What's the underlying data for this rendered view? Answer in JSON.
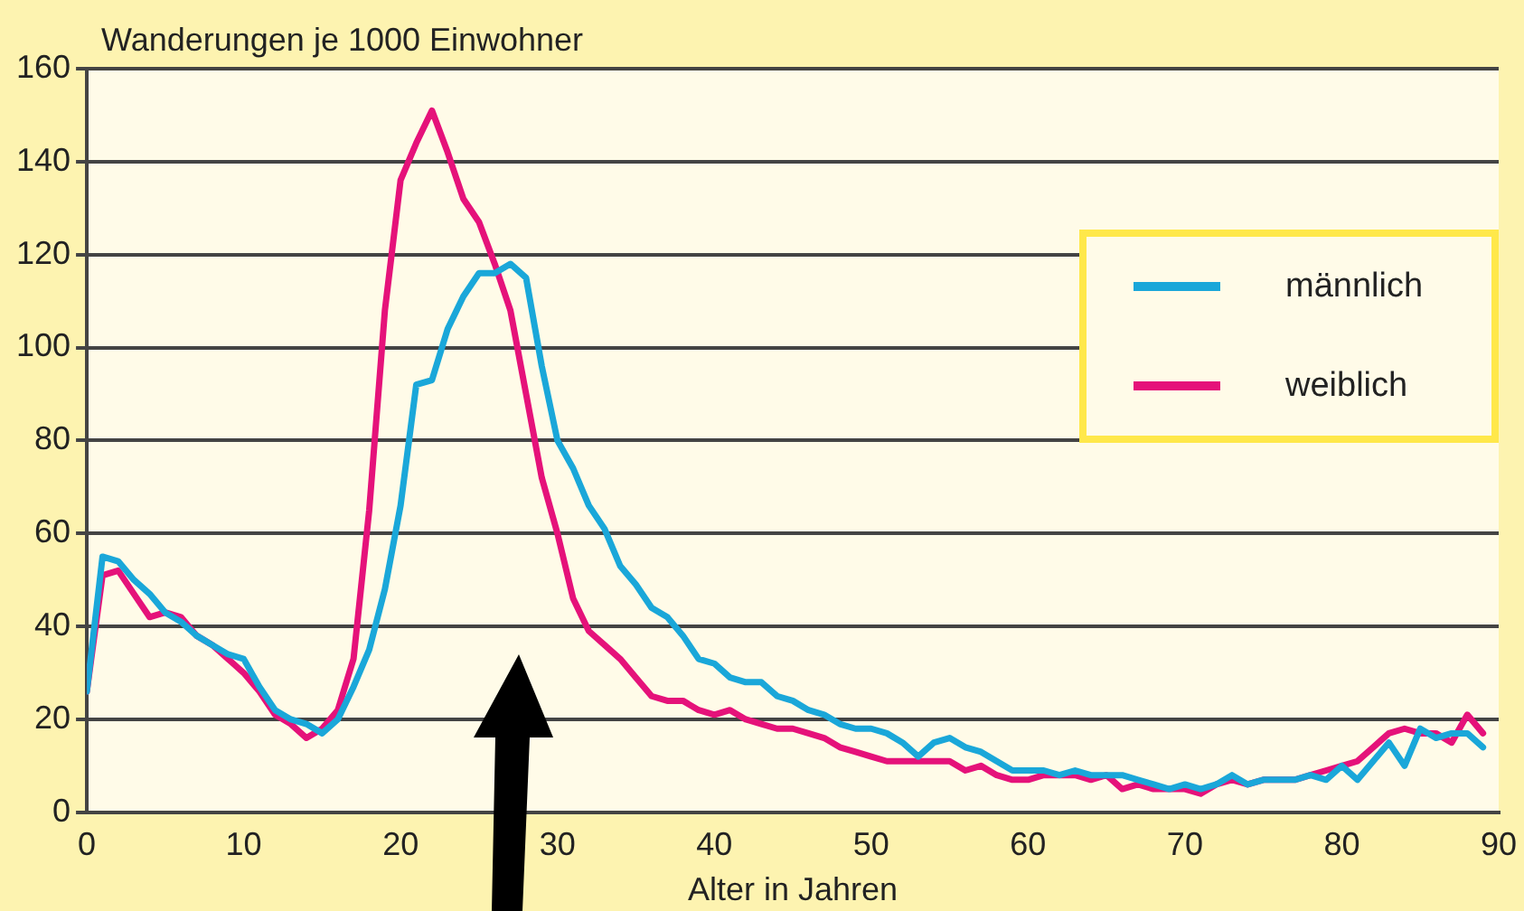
{
  "chart_data": {
    "type": "line",
    "ylabel": "Wanderungen je 1000 Einwohner",
    "xlabel": "Alter in Jahren",
    "x": [
      0,
      1,
      2,
      3,
      4,
      5,
      6,
      7,
      8,
      9,
      10,
      11,
      12,
      13,
      14,
      15,
      16,
      17,
      18,
      19,
      20,
      21,
      22,
      23,
      24,
      25,
      26,
      27,
      28,
      29,
      30,
      31,
      32,
      33,
      34,
      35,
      36,
      37,
      38,
      39,
      40,
      41,
      42,
      43,
      44,
      45,
      46,
      47,
      48,
      49,
      50,
      51,
      52,
      53,
      54,
      55,
      56,
      57,
      58,
      59,
      60,
      61,
      62,
      63,
      64,
      65,
      66,
      67,
      68,
      69,
      70,
      71,
      72,
      73,
      74,
      75,
      76,
      77,
      78,
      79,
      80,
      81,
      82,
      83,
      84,
      85,
      86,
      87,
      88,
      89
    ],
    "series": [
      {
        "name": "männlich",
        "color": "#1aa7d9",
        "values": [
          26,
          55,
          54,
          50,
          47,
          43,
          41,
          38,
          36,
          34,
          33,
          27,
          22,
          20,
          19,
          17,
          20,
          27,
          35,
          48,
          66,
          92,
          93,
          104,
          111,
          116,
          116,
          118,
          115,
          96,
          80,
          74,
          66,
          61,
          53,
          49,
          44,
          42,
          38,
          33,
          32,
          29,
          28,
          28,
          25,
          24,
          22,
          21,
          19,
          18,
          18,
          17,
          15,
          12,
          15,
          16,
          14,
          13,
          11,
          9,
          9,
          9,
          8,
          9,
          8,
          8,
          8,
          7,
          6,
          5,
          6,
          5,
          6,
          8,
          6,
          7,
          7,
          7,
          8,
          7,
          10,
          7,
          11,
          15,
          10,
          18,
          16,
          17,
          17,
          14
        ]
      },
      {
        "name": "weiblich",
        "color": "#e5127a",
        "values": [
          26,
          51,
          52,
          47,
          42,
          43,
          42,
          38,
          36,
          33,
          30,
          26,
          21,
          19,
          16,
          18,
          22,
          33,
          65,
          108,
          136,
          144,
          151,
          142,
          132,
          127,
          118,
          108,
          90,
          72,
          60,
          46,
          39,
          36,
          33,
          29,
          25,
          24,
          24,
          22,
          21,
          22,
          20,
          19,
          18,
          18,
          17,
          16,
          14,
          13,
          12,
          11,
          11,
          11,
          11,
          11,
          9,
          10,
          8,
          7,
          7,
          8,
          8,
          8,
          7,
          8,
          5,
          6,
          5,
          5,
          5,
          4,
          6,
          7,
          6,
          7,
          7,
          7,
          8,
          9,
          10,
          11,
          14,
          17,
          18,
          17,
          17,
          15,
          21,
          17
        ]
      }
    ],
    "xlim": [
      0,
      90
    ],
    "xticks": [
      0,
      10,
      20,
      30,
      40,
      50,
      60,
      70,
      80,
      90
    ],
    "ylim": [
      0,
      160
    ],
    "yticks": [
      0,
      20,
      40,
      60,
      80,
      100,
      120,
      140,
      160
    ],
    "grid": "y",
    "legend": "right",
    "marker": "none",
    "line_style": "solid"
  }
}
